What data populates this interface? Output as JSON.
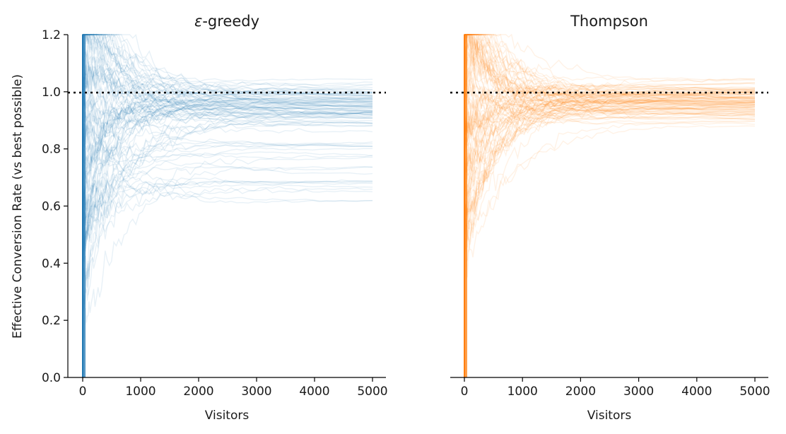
{
  "chart_data": [
    {
      "type": "line",
      "title_prefix": "ε",
      "title_suffix": "-greedy",
      "xlabel": "Visitors",
      "ylabel": "Effective Conversion Rate (vs best possible)",
      "xlim": [
        0,
        5000
      ],
      "ylim": [
        0,
        1.2
      ],
      "x_ticks": [
        0,
        1000,
        2000,
        3000,
        4000,
        5000
      ],
      "y_ticks": [
        0.0,
        0.2,
        0.4,
        0.6,
        0.8,
        1.0,
        1.2
      ],
      "reference_line": {
        "y": 1.0,
        "style": "dotted",
        "color": "#000000"
      },
      "series_color": "#1f77b4",
      "series_opacity": 0.1,
      "num_simulations": 100,
      "final_values_range": [
        0.63,
        1.0
      ],
      "final_value_median": 0.96,
      "representative_series": [
        {
          "x": [
            1,
            100,
            300,
            600,
            1000,
            2000,
            3000,
            5000
          ],
          "y": [
            0.0,
            1.1,
            1.05,
            1.02,
            1.0,
            0.99,
            0.99,
            0.99
          ]
        },
        {
          "x": [
            1,
            100,
            300,
            600,
            1000,
            2000,
            3000,
            5000
          ],
          "y": [
            0.0,
            0.5,
            0.75,
            0.85,
            0.9,
            0.94,
            0.96,
            0.97
          ]
        },
        {
          "x": [
            1,
            100,
            300,
            600,
            1000,
            2000,
            3000,
            5000
          ],
          "y": [
            0.0,
            0.25,
            0.45,
            0.55,
            0.6,
            0.62,
            0.63,
            0.63
          ]
        },
        {
          "x": [
            1,
            100,
            300,
            600,
            1000,
            2000,
            3000,
            5000
          ],
          "y": [
            0.0,
            0.2,
            0.55,
            0.6,
            0.62,
            0.65,
            0.66,
            0.67
          ]
        },
        {
          "x": [
            1,
            100,
            300,
            600,
            1000,
            2000,
            3000,
            5000
          ],
          "y": [
            0.0,
            0.3,
            0.6,
            0.65,
            0.7,
            0.75,
            0.8,
            0.85
          ]
        }
      ]
    },
    {
      "type": "line",
      "title": "Thompson",
      "xlabel": "Visitors",
      "xlim": [
        0,
        5000
      ],
      "ylim": [
        0,
        1.2
      ],
      "x_ticks": [
        0,
        1000,
        2000,
        3000,
        4000,
        5000
      ],
      "reference_line": {
        "y": 1.0,
        "style": "dotted",
        "color": "#000000"
      },
      "series_color": "#ff7f0e",
      "series_opacity": 0.1,
      "num_simulations": 100,
      "final_values_range": [
        0.93,
        1.03
      ],
      "final_value_median": 0.97,
      "representative_series": [
        {
          "x": [
            1,
            100,
            300,
            600,
            1000,
            2000,
            3000,
            5000
          ],
          "y": [
            0.0,
            0.5,
            0.75,
            0.85,
            0.9,
            0.94,
            0.96,
            0.97
          ]
        },
        {
          "x": [
            1,
            100,
            300,
            600,
            1000,
            2000,
            3000,
            5000
          ],
          "y": [
            0.0,
            0.9,
            1.0,
            1.0,
            0.99,
            0.98,
            0.98,
            0.98
          ]
        },
        {
          "x": [
            1,
            100,
            300,
            600,
            1000,
            2000,
            3000,
            5000
          ],
          "y": [
            0.0,
            0.3,
            0.55,
            0.7,
            0.8,
            0.9,
            0.93,
            0.95
          ]
        }
      ]
    }
  ]
}
